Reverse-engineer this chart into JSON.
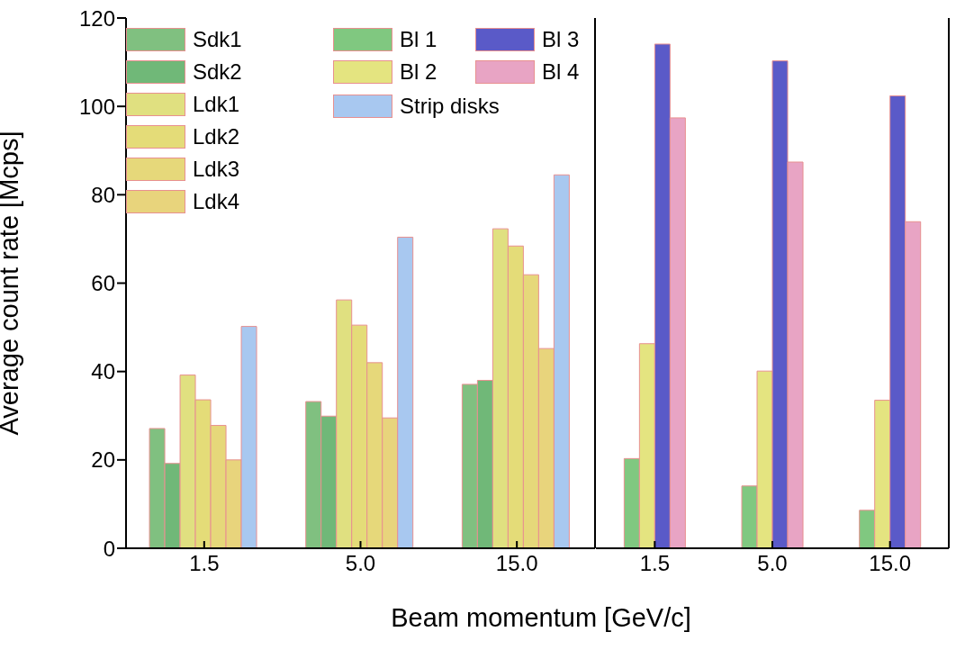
{
  "chart_data": [
    {
      "type": "bar",
      "ylabel": "Average count rate [Mcps]",
      "xlabel": "Beam momentum [GeV/c]",
      "categories": [
        "1.5",
        "5.0",
        "15.0"
      ],
      "ylim": [
        0,
        120
      ],
      "yticks": [
        0,
        20,
        40,
        60,
        80,
        100,
        120
      ],
      "legend": "top left",
      "series": [
        {
          "name": "Sdk1",
          "color": "#80c080",
          "values": [
            27.1,
            33.2,
            37.1
          ]
        },
        {
          "name": "Sdk2",
          "color": "#70b878",
          "values": [
            19.2,
            29.9,
            38.0
          ]
        },
        {
          "name": "Ldk1",
          "color": "#e0e080",
          "values": [
            39.2,
            56.2,
            72.3
          ]
        },
        {
          "name": "Ldk2",
          "color": "#e4dc78",
          "values": [
            33.6,
            50.5,
            68.4
          ]
        },
        {
          "name": "Ldk3",
          "color": "#e6d87a",
          "values": [
            27.8,
            42.0,
            61.9
          ]
        },
        {
          "name": "Ldk4",
          "color": "#e8d47c",
          "values": [
            20.0,
            29.5,
            45.2
          ]
        },
        {
          "name": "Strip disks",
          "color": "#a8c8f0",
          "values": [
            50.2,
            70.4,
            84.5
          ]
        }
      ]
    },
    {
      "type": "bar",
      "categories": [
        "1.5",
        "5.0",
        "15.0"
      ],
      "ylim": [
        0,
        120
      ],
      "yticks": [
        0,
        20,
        40,
        60,
        80,
        100,
        120
      ],
      "legend": "top left",
      "tick_labels": "x",
      "series": [
        {
          "name": "Bl 1",
          "color": "#80c880",
          "values": [
            20.3,
            14.1,
            8.6
          ]
        },
        {
          "name": "Bl 2",
          "color": "#e4e480",
          "values": [
            46.3,
            40.1,
            33.5
          ]
        },
        {
          "name": "Bl 3",
          "color": "#5a5ac8",
          "values": [
            114.1,
            110.3,
            102.4
          ]
        },
        {
          "name": "Bl 4",
          "color": "#e8a4c4",
          "values": [
            97.4,
            87.4,
            73.9
          ]
        }
      ]
    }
  ]
}
